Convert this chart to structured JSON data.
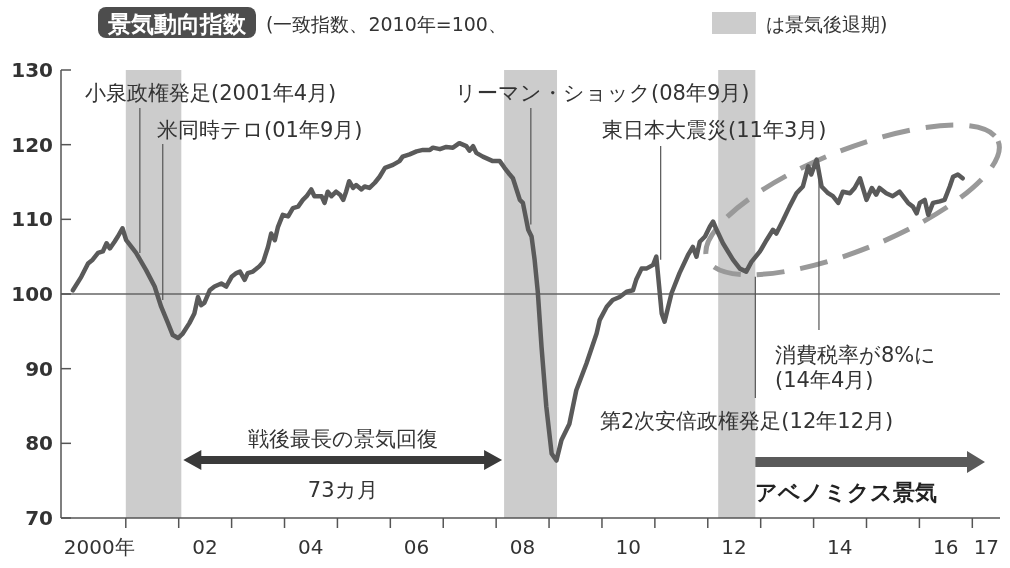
{
  "chart_data": {
    "type": "line",
    "title": "景気動向指数",
    "subtitle": "(一致指数、2010年=100、",
    "x": [
      "2000-01-01",
      "2000-02-28",
      "2000-04-15",
      "2000-05-17",
      "2000-06-23",
      "2000-07-26",
      "2000-08-21",
      "2000-09-13",
      "2000-10-15",
      "2000-11-07",
      "2000-12-09",
      "2001-01-04",
      "2001-03-13",
      "2001-05-21",
      "2001-07-19",
      "2001-09-02",
      "2001-10-19",
      "2001-11-21",
      "2001-12-27",
      "2002-01-29",
      "2002-03-16",
      "2002-04-19",
      "2002-05-14",
      "2002-06-05",
      "2002-06-27",
      "2002-08-03",
      "2002-09-05",
      "2002-10-22",
      "2002-11-25",
      "2003-01-01",
      "2003-02-03",
      "2003-02-28",
      "2003-04-01",
      "2003-04-22",
      "2003-05-28",
      "2003-07-11",
      "2003-08-07",
      "2003-09-09",
      "2003-10-01",
      "2003-10-26",
      "2003-11-17",
      "2003-12-20",
      "2004-01-26",
      "2004-02-28",
      "2004-04-04",
      "2004-05-07",
      "2004-06-02",
      "2004-07-04",
      "2004-07-26",
      "2004-09-13",
      "2004-10-04",
      "2004-10-26",
      "2004-11-21",
      "2004-12-23",
      "2005-01-19",
      "2005-02-10",
      "2005-03-02",
      "2005-03-23",
      "2005-04-19",
      "2005-05-10",
      "2005-06-16",
      "2005-07-08",
      "2005-08-10",
      "2005-09-16",
      "2005-10-19",
      "2005-11-25",
      "2006-01-19",
      "2006-03-05",
      "2006-03-27",
      "2006-05-14",
      "2006-07-01",
      "2006-08-14",
      "2006-10-01",
      "2006-10-22",
      "2006-12-09",
      "2007-01-22",
      "2007-03-09",
      "2007-04-22",
      "2007-06-09",
      "2007-07-01",
      "2007-07-26",
      "2007-08-17",
      "2007-10-01",
      "2007-12-09",
      "2008-01-26",
      "2008-02-28",
      "2008-04-04",
      "2008-04-26",
      "2008-05-21",
      "2008-06-13",
      "2008-07-04",
      "2008-08-10",
      "2008-09-02",
      "2008-09-23",
      "2008-10-15",
      "2008-11-10",
      "2008-12-13",
      "2009-01-19",
      "2009-02-21",
      "2009-03-27",
      "2009-05-21",
      "2009-07-08",
      "2009-09-16",
      "2009-11-25",
      "2009-12-16",
      "2010-02-03",
      "2010-03-16",
      "2010-05-03",
      "2010-06-20",
      "2010-08-03",
      "2010-08-25",
      "2010-10-01",
      "2010-11-03",
      "2010-12-20",
      "2011-01-11",
      "2011-02-17",
      "2011-03-09",
      "2011-04-26",
      "2011-06-20",
      "2011-08-17",
      "2011-09-20",
      "2011-10-15",
      "2011-11-07",
      "2011-12-13",
      "2012-01-15",
      "2012-02-07",
      "2012-03-02",
      "2012-04-15",
      "2012-06-23",
      "2012-08-10",
      "2012-09-23",
      "2012-10-29",
      "2012-12-27",
      "2013-02-10",
      "2013-03-27",
      "2013-04-19",
      "2013-06-05",
      "2013-07-19",
      "2013-09-05",
      "2013-10-19",
      "2013-11-25",
      "2013-12-16",
      "2014-01-22",
      "2014-02-25",
      "2014-04-11",
      "2014-05-14",
      "2014-06-20",
      "2014-07-22",
      "2014-09-09",
      "2014-10-11",
      "2014-11-17",
      "2015-01-01",
      "2015-02-07",
      "2015-03-09",
      "2015-04-01",
      "2015-05-17",
      "2015-07-01",
      "2015-08-17",
      "2015-10-15",
      "2015-11-17",
      "2015-12-13",
      "2016-01-04",
      "2016-02-07",
      "2016-03-02",
      "2016-04-04",
      "2016-05-21",
      "2016-06-23",
      "2016-07-29",
      "2016-08-21",
      "2016-09-23",
      "2016-10-26"
    ],
    "series": [
      {
        "color": "#5a5a5a",
        "values": [
          100.5,
          102.3,
          104.1,
          104.6,
          105.5,
          105.7,
          106.8,
          106.1,
          107.0,
          107.7,
          108.8,
          107.2,
          105.5,
          103.2,
          101.0,
          98.3,
          96.1,
          94.5,
          94.1,
          94.7,
          96.1,
          97.4,
          99.6,
          98.5,
          98.8,
          100.5,
          101.0,
          101.4,
          101.0,
          102.3,
          102.8,
          103.0,
          101.9,
          102.8,
          103.0,
          103.7,
          104.3,
          106.3,
          108.1,
          107.2,
          109.0,
          110.6,
          110.4,
          111.5,
          111.7,
          112.6,
          113.1,
          114.0,
          113.1,
          113.1,
          112.2,
          113.7,
          113.1,
          113.7,
          113.3,
          112.6,
          113.7,
          115.1,
          114.2,
          114.6,
          114.0,
          114.4,
          114.2,
          114.9,
          115.7,
          116.9,
          117.3,
          117.8,
          118.4,
          118.7,
          119.1,
          119.3,
          119.3,
          119.6,
          119.4,
          119.7,
          119.6,
          120.2,
          119.8,
          119.2,
          119.8,
          118.9,
          118.4,
          117.8,
          117.8,
          116.9,
          116.0,
          115.5,
          114.0,
          112.6,
          112.2,
          108.6,
          107.7,
          104.6,
          100.3,
          92.9,
          84.9,
          78.6,
          77.7,
          80.4,
          82.6,
          87.1,
          90.7,
          94.7,
          96.5,
          98.3,
          99.2,
          99.6,
          100.3,
          100.5,
          101.9,
          103.4,
          103.4,
          103.9,
          105.0,
          97.4,
          96.3,
          100.1,
          102.8,
          105.2,
          106.3,
          105.0,
          107.0,
          107.7,
          109.0,
          109.7,
          108.6,
          106.8,
          104.6,
          103.4,
          103.0,
          104.3,
          105.7,
          107.2,
          108.6,
          108.1,
          109.9,
          111.7,
          113.5,
          114.4,
          117.1,
          116.0,
          118.0,
          114.4,
          113.5,
          113.1,
          112.2,
          113.7,
          113.5,
          114.2,
          115.5,
          112.6,
          114.2,
          113.3,
          114.2,
          113.5,
          113.1,
          113.7,
          112.2,
          111.7,
          110.8,
          112.2,
          112.6,
          110.6,
          112.2,
          112.4,
          112.6,
          114.4,
          115.7,
          116.0,
          115.5
        ]
      }
    ],
    "xlim": [
      "1999-10-11",
      "2017-07-11"
    ],
    "ylim": [
      70,
      130
    ],
    "xticks": [
      {
        "value": "2000-07-01",
        "label": "2000年"
      },
      {
        "value": "2002-07-01",
        "label": "02"
      },
      {
        "value": "2004-07-01",
        "label": "04"
      },
      {
        "value": "2006-07-01",
        "label": "06"
      },
      {
        "value": "2008-07-01",
        "label": "08"
      },
      {
        "value": "2010-07-01",
        "label": "10"
      },
      {
        "value": "2012-07-01",
        "label": "12"
      },
      {
        "value": "2014-07-01",
        "label": "14"
      },
      {
        "value": "2016-07-01",
        "label": "16"
      },
      {
        "value": "2017-04-08",
        "label": "17"
      },
      {
        "value": "2001-01-01",
        "label": null
      },
      {
        "value": "2002-01-01",
        "label": null
      },
      {
        "value": "2003-01-01",
        "label": null
      },
      {
        "value": "2004-01-01",
        "label": null
      },
      {
        "value": "2005-01-01",
        "label": null
      },
      {
        "value": "2006-01-01",
        "label": null
      },
      {
        "value": "2007-01-01",
        "label": null
      },
      {
        "value": "2008-01-01",
        "label": null
      },
      {
        "value": "2009-01-01",
        "label": null
      },
      {
        "value": "2010-01-01",
        "label": null
      },
      {
        "value": "2011-01-01",
        "label": null
      },
      {
        "value": "2012-01-01",
        "label": null
      },
      {
        "value": "2013-01-01",
        "label": null
      },
      {
        "value": "2014-01-01",
        "label": null
      },
      {
        "value": "2015-01-01",
        "label": null
      },
      {
        "value": "2016-01-01",
        "label": null
      },
      {
        "value": "2017-01-01",
        "label": null
      }
    ],
    "yticks": [
      70,
      80,
      90,
      100,
      110,
      120,
      130
    ],
    "ref_lines": [
      {
        "axis": "y",
        "value": 100,
        "color": "#666666"
      }
    ],
    "bands": [
      {
        "axis": "x",
        "from": "2001-01-01",
        "to": "2002-01-19",
        "color": "#cccccc"
      },
      {
        "axis": "x",
        "from": "2008-02-25",
        "to": "2009-02-25",
        "color": "#cccccc"
      },
      {
        "axis": "x",
        "from": "2012-03-13",
        "to": "2012-11-25",
        "color": "#cccccc"
      }
    ],
    "annotations": [
      {
        "text": "小泉政権発足(2001年4月)",
        "x": "2001-04-08",
        "y": 105.5
      },
      {
        "text": "米同時テロ(01年9月)",
        "x": "2001-09-13",
        "y": 99.2
      },
      {
        "text": "リーマン・ショック(08年9月)",
        "x": "2008-08-28",
        "y": 109.3
      },
      {
        "text": "東日本大震災(11年3月)",
        "x": "2011-02-10",
        "y": 104.6
      },
      {
        "text": "第2次安倍政権発足(12年12月)",
        "x": "2012-11-25",
        "y": 102.3
      },
      {
        "text": "消費税率が8%に\n(14年4月)",
        "x": "2014-02-07",
        "y": 116.4
      },
      "戦後最長の景気回復",
      "73カ月",
      "アベノミクス景気",
      "は景気後退期)"
    ]
  }
}
